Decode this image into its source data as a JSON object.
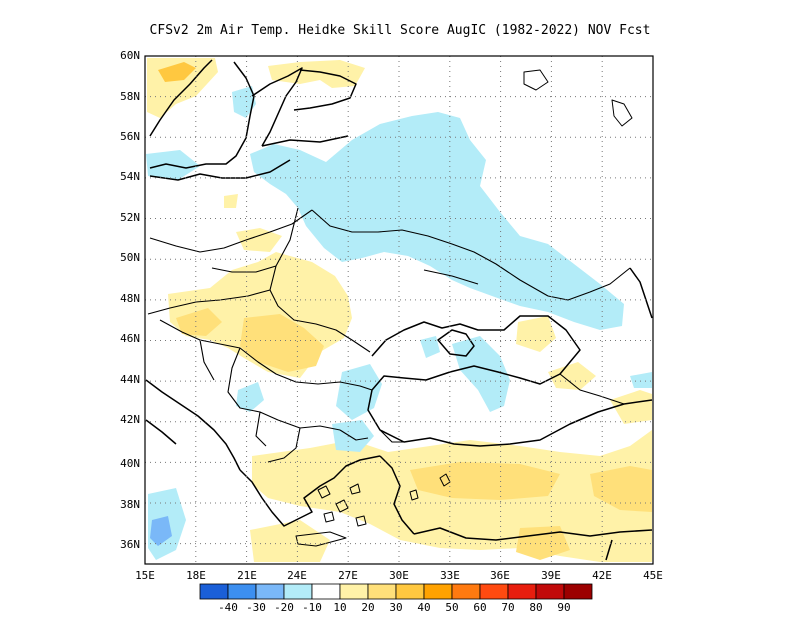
{
  "title": "CFSv2  2m Air Temp. Heidke Skill Score AugIC (1982-2022) NOV Fcst",
  "lat_labels": [
    "60N",
    "58N",
    "56N",
    "54N",
    "52N",
    "50N",
    "48N",
    "46N",
    "44N",
    "42N",
    "40N",
    "38N",
    "36N"
  ],
  "lon_labels": [
    "15E",
    "18E",
    "21E",
    "24E",
    "27E",
    "30E",
    "33E",
    "36E",
    "39E",
    "42E",
    "45E"
  ],
  "colorbar": {
    "colors": [
      "#1a5fd8",
      "#3c8ff0",
      "#7ab8f8",
      "#b3ecf8",
      "#ffffff",
      "#fff2a8",
      "#ffe07a",
      "#ffc840",
      "#ffa200",
      "#ff7a10",
      "#ff4a10",
      "#e81e0e",
      "#c10a0a",
      "#9c0000"
    ],
    "labels": [
      "-40",
      "-30",
      "-20",
      "-10",
      "10",
      "20",
      "30",
      "40",
      "50",
      "60",
      "70",
      "80",
      "90"
    ]
  },
  "palette": {
    "yellow": "#fff2a8",
    "yellow2": "#ffe07a",
    "orange": "#ffc840",
    "cyan": "#b3ecf8",
    "blue": "#7ab8f8"
  }
}
